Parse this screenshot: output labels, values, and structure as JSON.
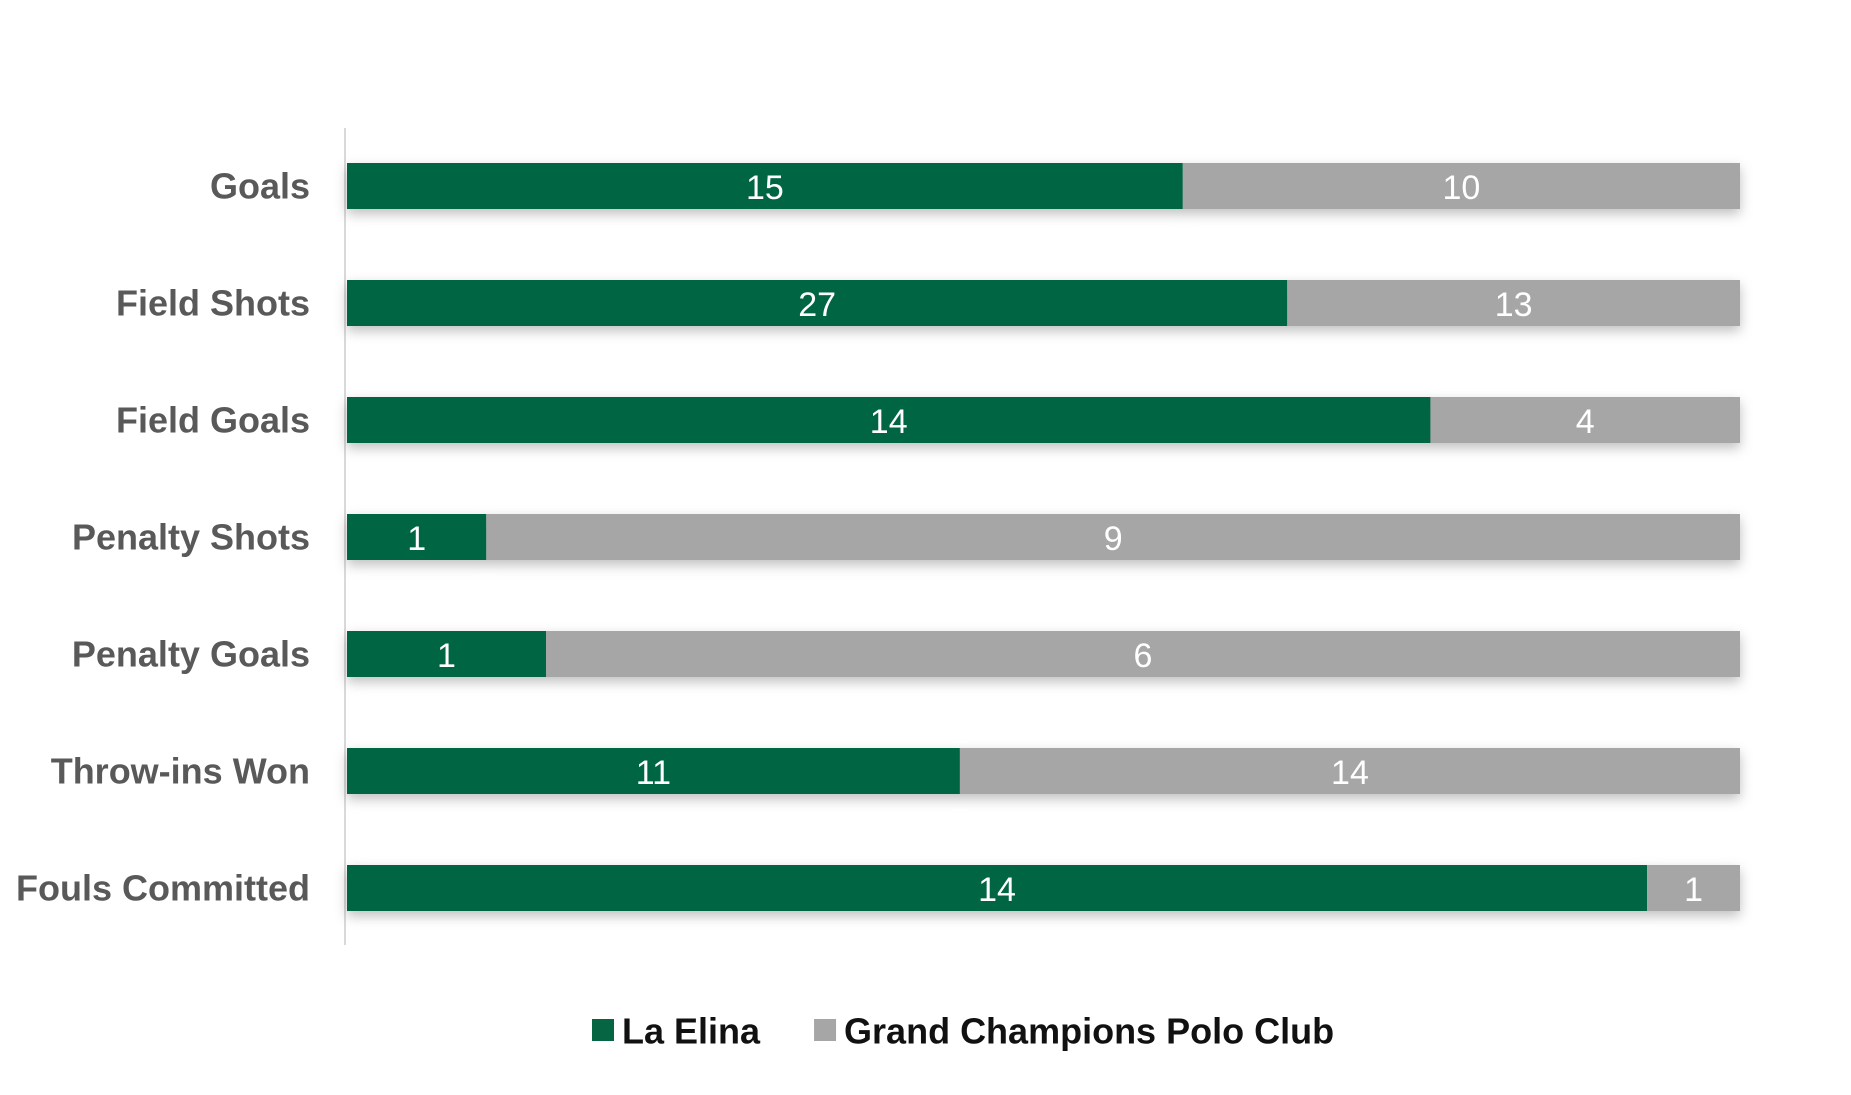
{
  "chart_data": {
    "type": "bar",
    "orientation": "horizontal",
    "stacked": "percent",
    "categories": [
      "Goals",
      "Field Shots",
      "Field Goals",
      "Penalty Shots",
      "Penalty Goals",
      "Throw-ins Won",
      "Fouls Committed"
    ],
    "series": [
      {
        "name": "La Elina",
        "color": "#066543",
        "values": [
          15,
          27,
          14,
          1,
          1,
          11,
          14
        ]
      },
      {
        "name": "Grand Champions Polo Club",
        "color": "#a6a6a6",
        "values": [
          10,
          13,
          4,
          9,
          6,
          14,
          1
        ]
      }
    ],
    "title": "",
    "xlabel": "",
    "ylabel": "",
    "grid": false,
    "legend_position": "bottom"
  }
}
